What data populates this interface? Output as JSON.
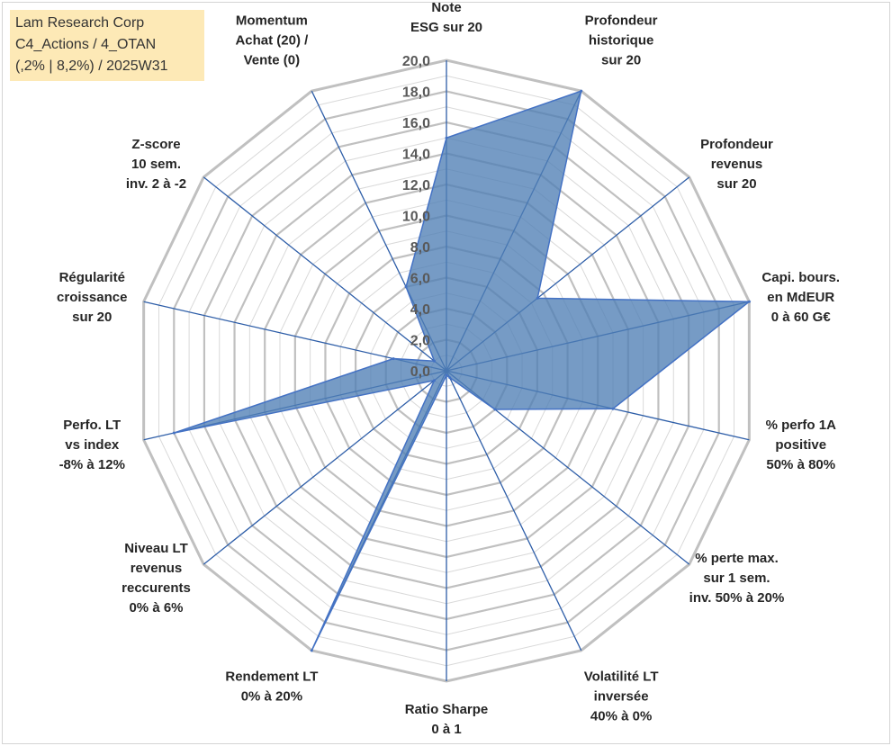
{
  "header": {
    "line1": "Lam Research Corp",
    "line2": "C4_Actions / 4_OTAN",
    "line3": "(,2% | 8,2%) / 2025W31"
  },
  "chart_data": {
    "type": "radar",
    "rmax": 20,
    "tick_step": 2,
    "tick_labels": [
      "0,0",
      "2,0",
      "4,0",
      "6,0",
      "8,0",
      "10,0",
      "12,0",
      "14,0",
      "16,0",
      "18,0",
      "20,0"
    ],
    "grid": true,
    "axes": [
      {
        "label": [
          "Note",
          "ESG sur 20"
        ],
        "value": 15.0
      },
      {
        "label": [
          "Profondeur",
          "historique",
          "sur 20"
        ],
        "value": 20.0
      },
      {
        "label": [
          "Profondeur",
          "revenus",
          "sur 20"
        ],
        "value": 7.5
      },
      {
        "label": [
          "Capi. bours.",
          "en MdEUR",
          "0 à 60 G€"
        ],
        "value": 20.0
      },
      {
        "label": [
          "% perfo 1A",
          "positive",
          "50% à 80%"
        ],
        "value": 11.0
      },
      {
        "label": [
          "% perte max.",
          "sur 1 sem.",
          "inv. 50% à 20%"
        ],
        "value": 4.0
      },
      {
        "label": [
          "Volatilité LT",
          "inversée",
          "40% à 0%"
        ],
        "value": 0.5
      },
      {
        "label": [
          "Ratio Sharpe",
          "0 à 1"
        ],
        "value": 0.3
      },
      {
        "label": [
          "Rendement LT",
          "0% à 20%"
        ],
        "value": 20.0
      },
      {
        "label": [
          "Niveau LT",
          "revenus",
          "reccurents",
          "0% à 6%"
        ],
        "value": 1.0
      },
      {
        "label": [
          "Perfo. LT",
          "vs index",
          "-8% à 12%"
        ],
        "value": 18.0
      },
      {
        "label": [
          "Régularité",
          "croissance",
          "sur 20"
        ],
        "value": 3.5
      },
      {
        "label": [
          "Z-score",
          "10 sem.",
          "inv. 2 à -2"
        ],
        "value": 1.0
      },
      {
        "label": [
          "Momentum",
          "Achat (20) /",
          "Vente (0)"
        ],
        "value": 6.0
      }
    ],
    "colors": {
      "fill": "#4f7fb5",
      "stroke": "#4472c4",
      "grid": "#c0c0c0",
      "minor_grid": "#d9d9d9",
      "spoke": "#2e5ea8"
    }
  }
}
